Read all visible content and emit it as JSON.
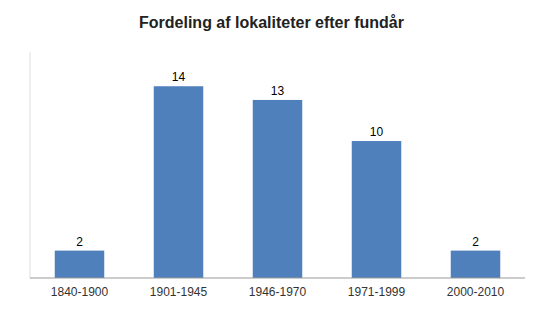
{
  "chart_data": {
    "type": "bar",
    "title": "Fordeling af lokaliteter efter fundår",
    "categories": [
      "1840-1900",
      "1901-1945",
      "1946-1970",
      "1971-1999",
      "2000-2010"
    ],
    "values": [
      2,
      14,
      13,
      10,
      2
    ],
    "color": "#5080BC",
    "ylim": [
      0,
      16.5
    ],
    "grid": false,
    "data_labels": true,
    "tick_labels": "x"
  }
}
